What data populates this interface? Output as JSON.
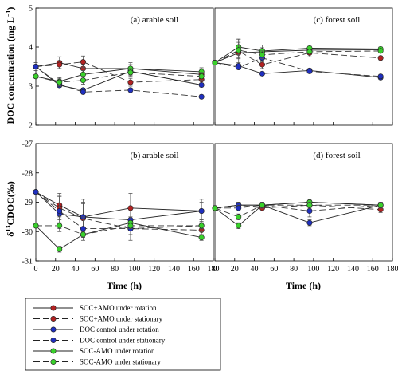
{
  "chart_data": {
    "type": "line",
    "xlabel": "Time (h)",
    "x_ticks": [
      "0",
      "20",
      "40",
      "60",
      "80",
      "100",
      "120",
      "140",
      "160",
      "180"
    ],
    "xlim": [
      0,
      180
    ],
    "rows": [
      {
        "ylabel_main": "DOC concentration (mg L",
        "ylabel_sup": "−1",
        "ylabel_tail": ")",
        "ylim": [
          2,
          5
        ],
        "y_ticks": [
          "2",
          "3",
          "4",
          "5"
        ],
        "panels": [
          {
            "title": "(a) arable soil",
            "x": [
              0,
              24,
              48,
              96,
              168
            ],
            "series": [
              {
                "values": [
                  3.5,
                  3.6,
                  3.45,
                  3.45,
                  3.3
                ],
                "err": [
                  0.1,
                  0.15,
                  0.1,
                  0.15,
                  0.1
                ]
              },
              {
                "values": [
                  3.5,
                  3.55,
                  3.62,
                  3.1,
                  3.17
                ],
                "err": [
                  0.1,
                  0.1,
                  0.15,
                  0.1,
                  0.1
                ]
              },
              {
                "values": [
                  3.5,
                  3.02,
                  2.9,
                  3.38,
                  3.03
                ],
                "err": [
                  0.05,
                  0.05,
                  0.05,
                  0.1,
                  0.05
                ]
              },
              {
                "values": [
                  3.5,
                  3.05,
                  2.85,
                  2.9,
                  2.73
                ],
                "err": [
                  0.05,
                  0.05,
                  0.05,
                  0.05,
                  0.05
                ]
              },
              {
                "values": [
                  3.25,
                  3.12,
                  3.3,
                  3.45,
                  3.37
                ],
                "err": [
                  0.05,
                  0.1,
                  0.1,
                  0.1,
                  0.1
                ]
              },
              {
                "values": [
                  3.25,
                  3.1,
                  3.15,
                  3.35,
                  3.25
                ],
                "err": [
                  0.05,
                  0.1,
                  0.1,
                  0.1,
                  0.1
                ]
              }
            ]
          },
          {
            "title": "(c) forest soil",
            "x": [
              0,
              24,
              48,
              96,
              168
            ],
            "series": [
              {
                "values": [
                  3.6,
                  3.85,
                  3.88,
                  3.92,
                  3.93
                ],
                "err": [
                  0.05,
                  0.15,
                  0.1,
                  0.05,
                  0.05
                ]
              },
              {
                "values": [
                  3.6,
                  3.9,
                  3.55,
                  3.85,
                  3.72
                ],
                "err": [
                  0.05,
                  0.3,
                  0.1,
                  0.1,
                  0.05
                ]
              },
              {
                "values": [
                  3.6,
                  3.52,
                  3.32,
                  3.4,
                  3.22
                ],
                "err": [
                  0.05,
                  0.05,
                  0.05,
                  0.05,
                  0.05
                ]
              },
              {
                "values": [
                  3.6,
                  3.48,
                  3.72,
                  3.38,
                  3.25
                ],
                "err": [
                  0.05,
                  0.05,
                  0.1,
                  0.05,
                  0.05
                ]
              },
              {
                "values": [
                  3.6,
                  4.0,
                  3.9,
                  3.97,
                  3.95
                ],
                "err": [
                  0.05,
                  0.2,
                  0.15,
                  0.05,
                  0.05
                ]
              },
              {
                "values": [
                  3.6,
                  3.92,
                  3.8,
                  3.88,
                  3.9
                ],
                "err": [
                  0.05,
                  0.2,
                  0.1,
                  0.05,
                  0.05
                ]
              }
            ]
          }
        ]
      },
      {
        "ylabel_main": "δ",
        "ylabel_sup": "13",
        "ylabel_tail": "CDOC(‰)",
        "ylim": [
          -31,
          -27
        ],
        "y_ticks": [
          "-31",
          "-30",
          "-29",
          "-28",
          "-27"
        ],
        "panels": [
          {
            "title": "(b) arable soil",
            "x": [
              0,
              24,
              48,
              96,
              168
            ],
            "series": [
              {
                "values": [
                  -28.65,
                  -29.1,
                  -29.5,
                  -29.2,
                  -29.3
                ],
                "err": [
                  0.05,
                  0.4,
                  0.5,
                  0.5,
                  0.4
                ]
              },
              {
                "values": [
                  -28.65,
                  -29.2,
                  -29.55,
                  -29.9,
                  -29.95
                ],
                "err": [
                  0.05,
                  0.4,
                  0.5,
                  0.4,
                  0.3
                ]
              },
              {
                "values": [
                  -28.65,
                  -29.4,
                  -29.5,
                  -29.6,
                  -29.3
                ],
                "err": [
                  0.05,
                  0.6,
                  0.6,
                  0.3,
                  0.3
                ]
              },
              {
                "values": [
                  -28.65,
                  -29.3,
                  -29.9,
                  -29.9,
                  -29.8
                ],
                "err": [
                  0.05,
                  0.5,
                  0.4,
                  0.2,
                  0.2
                ]
              },
              {
                "values": [
                  -29.8,
                  -30.6,
                  -30.1,
                  -29.7,
                  -30.2
                ],
                "err": [
                  0.05,
                  0.1,
                  0.1,
                  0.2,
                  0.1
                ]
              },
              {
                "values": [
                  -29.8,
                  -29.8,
                  -30.1,
                  -29.8,
                  -29.8
                ],
                "err": [
                  0.05,
                  0.1,
                  0.1,
                  0.1,
                  0.1
                ]
              }
            ]
          },
          {
            "title": "(d) forest soil",
            "x": [
              0,
              24,
              48,
              96,
              168
            ],
            "series": [
              {
                "values": [
                  -29.2,
                  -29.1,
                  -29.1,
                  -29.0,
                  -29.1
                ],
                "err": [
                  0.05,
                  0.1,
                  0.1,
                  0.1,
                  0.1
                ]
              },
              {
                "values": [
                  -29.2,
                  -29.1,
                  -29.2,
                  -29.1,
                  -29.25
                ],
                "err": [
                  0.05,
                  0.1,
                  0.1,
                  0.1,
                  0.1
                ]
              },
              {
                "values": [
                  -29.2,
                  -29.1,
                  -29.1,
                  -29.7,
                  -29.1
                ],
                "err": [
                  0.05,
                  0.1,
                  0.1,
                  0.1,
                  0.1
                ]
              },
              {
                "values": [
                  -29.2,
                  -29.2,
                  -29.1,
                  -29.3,
                  -29.1
                ],
                "err": [
                  0.05,
                  0.1,
                  0.1,
                  0.2,
                  0.1
                ]
              },
              {
                "values": [
                  -29.2,
                  -29.8,
                  -29.1,
                  -29.0,
                  -29.1
                ],
                "err": [
                  0.05,
                  0.1,
                  0.1,
                  0.1,
                  0.1
                ]
              },
              {
                "values": [
                  -29.2,
                  -29.5,
                  -29.1,
                  -29.1,
                  -29.1
                ],
                "err": [
                  0.05,
                  0.1,
                  0.1,
                  0.1,
                  0.1
                ]
              }
            ]
          }
        ]
      }
    ],
    "legend": [
      {
        "name": "SOC+AMO under rotation",
        "color": "#b22222",
        "dash": false
      },
      {
        "name": "SOC+AMO under stationary",
        "color": "#b22222",
        "dash": true
      },
      {
        "name": "DOC control under rotation",
        "color": "#1f2fbf",
        "dash": false
      },
      {
        "name": "DOC control under stationary",
        "color": "#1f2fbf",
        "dash": true
      },
      {
        "name": "SOC-AMO under rotation",
        "color": "#39d12b",
        "dash": false
      },
      {
        "name": "SOC-AMO under stationary",
        "color": "#39d12b",
        "dash": true
      }
    ],
    "legend_placement": "bottom"
  }
}
